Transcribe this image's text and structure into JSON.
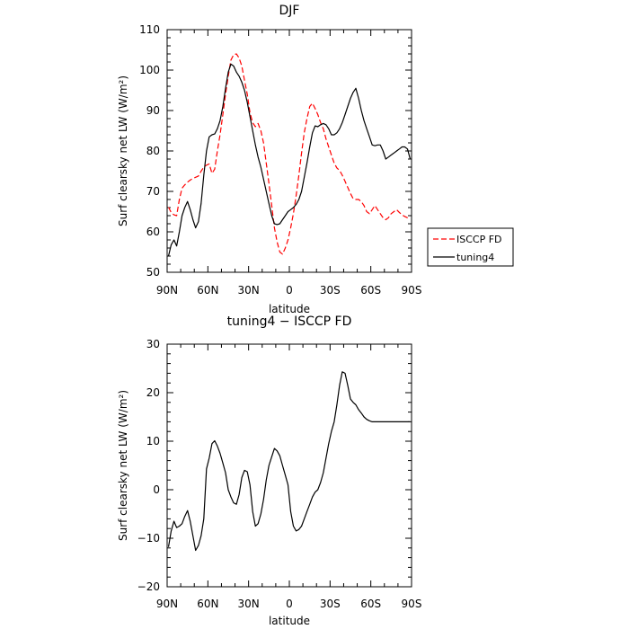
{
  "chart_data": [
    {
      "type": "line",
      "title": "DJF",
      "xlabel": "latitude",
      "ylabel": "Surf clearsky net LW (W/m²)",
      "xlim": [
        90,
        -90
      ],
      "ylim": [
        50,
        110
      ],
      "x_ticks": [
        90,
        60,
        30,
        0,
        -30,
        -60,
        -90
      ],
      "x_tick_labels": [
        "90N",
        "60N",
        "30N",
        "0",
        "30S",
        "60S",
        "90S"
      ],
      "y_ticks": [
        50,
        60,
        70,
        80,
        90,
        100,
        110
      ],
      "y_tick_labels": [
        "50",
        "60",
        "70",
        "80",
        "90",
        "100",
        "110"
      ],
      "legend_position": "outside-right",
      "series": [
        {
          "name": "ISCCP FD",
          "color": "#ff0000",
          "dash": "dashed",
          "x": [
            89,
            87,
            85,
            83,
            81,
            79,
            77,
            75,
            73,
            71,
            69,
            67,
            65,
            63,
            61,
            59,
            57,
            55,
            53,
            51,
            49,
            47,
            45,
            43,
            41,
            39,
            37,
            35,
            33,
            31,
            29,
            27,
            25,
            23,
            21,
            19,
            17,
            15,
            13,
            11,
            9,
            7,
            5,
            3,
            1,
            -1,
            -3,
            -5,
            -7,
            -9,
            -11,
            -13,
            -15,
            -17,
            -19,
            -21,
            -23,
            -25,
            -27,
            -29,
            -31,
            -33,
            -35,
            -37,
            -39,
            -41,
            -43,
            -45,
            -47,
            -49,
            -51,
            -53,
            -55,
            -57,
            -59,
            -61,
            -63,
            -65,
            -67,
            -69,
            -71,
            -73,
            -75,
            -77,
            -79,
            -81,
            -83,
            -85,
            -87,
            -89
          ],
          "values": [
            66.1,
            64.8,
            64.2,
            64.0,
            68.0,
            70.8,
            71.6,
            72.3,
            72.8,
            73.2,
            73.5,
            73.8,
            75.0,
            76.0,
            76.5,
            76.8,
            74.5,
            75.5,
            80.0,
            84.0,
            89.0,
            94.0,
            98.5,
            102.5,
            103.8,
            104.0,
            103.0,
            101.0,
            97.5,
            94.0,
            89.5,
            87.0,
            86.0,
            86.8,
            85.0,
            82.0,
            77.0,
            72.0,
            66.5,
            61.0,
            57.5,
            55.0,
            54.5,
            56.0,
            58.0,
            61.0,
            64.5,
            69.0,
            74.0,
            79.5,
            84.5,
            88.0,
            91.0,
            91.8,
            90.5,
            89.0,
            87.0,
            85.5,
            83.0,
            81.0,
            79.0,
            77.0,
            75.8,
            75.2,
            74.0,
            72.5,
            71.0,
            69.5,
            68.2,
            68.0,
            68.0,
            67.5,
            66.5,
            65.0,
            64.5,
            65.5,
            66.5,
            65.5,
            64.5,
            63.5,
            63.0,
            63.5,
            64.5,
            65.0,
            65.5,
            64.8,
            64.2,
            63.8,
            63.5,
            63.3
          ]
        },
        {
          "name": "tuning4",
          "color": "#000000",
          "dash": "solid",
          "x": [
            89,
            87,
            85,
            83,
            81,
            79,
            77,
            75,
            73,
            71,
            69,
            67,
            65,
            63,
            61,
            59,
            57,
            55,
            53,
            51,
            49,
            47,
            45,
            43,
            41,
            39,
            37,
            35,
            33,
            31,
            29,
            27,
            25,
            23,
            21,
            19,
            17,
            15,
            13,
            11,
            9,
            7,
            5,
            3,
            1,
            -1,
            -3,
            -5,
            -7,
            -9,
            -11,
            -13,
            -15,
            -17,
            -19,
            -21,
            -23,
            -25,
            -27,
            -29,
            -31,
            -33,
            -35,
            -37,
            -39,
            -41,
            -43,
            -45,
            -47,
            -49,
            -51,
            -53,
            -55,
            -57,
            -59,
            -61,
            -63,
            -65,
            -67,
            -69,
            -71,
            -73,
            -75,
            -77,
            -79,
            -81,
            -83,
            -85,
            -87,
            -89
          ],
          "values": [
            54.0,
            56.8,
            58.0,
            56.5,
            60.0,
            64.0,
            66.0,
            67.5,
            65.5,
            63.0,
            61.0,
            62.5,
            67.0,
            74.0,
            80.0,
            83.5,
            84.0,
            84.2,
            85.5,
            87.5,
            91.0,
            95.5,
            99.5,
            101.5,
            101.0,
            99.5,
            98.5,
            97.0,
            95.0,
            92.0,
            88.5,
            85.0,
            81.5,
            78.5,
            76.0,
            73.0,
            70.0,
            67.0,
            64.0,
            62.0,
            61.8,
            62.0,
            63.0,
            64.0,
            65.0,
            65.5,
            66.0,
            66.8,
            68.0,
            70.0,
            73.5,
            77.0,
            81.0,
            84.5,
            86.2,
            86.0,
            86.5,
            86.8,
            86.5,
            85.5,
            84.0,
            84.0,
            84.5,
            85.5,
            87.0,
            89.0,
            91.0,
            93.0,
            94.5,
            95.5,
            93.0,
            90.0,
            87.5,
            85.5,
            83.5,
            81.5,
            81.3,
            81.5,
            81.5,
            80.0,
            78.0,
            78.5,
            79.0,
            79.5,
            80.0,
            80.5,
            81.0,
            81.0,
            80.5,
            78.0
          ]
        }
      ]
    },
    {
      "type": "line",
      "title": "tuning4 − ISCCP FD",
      "xlabel": "latitude",
      "ylabel": "Surf clearsky net LW (W/m²)",
      "xlim": [
        90,
        -90
      ],
      "ylim": [
        -20,
        30
      ],
      "x_ticks": [
        90,
        60,
        30,
        0,
        -30,
        -60,
        -90
      ],
      "x_tick_labels": [
        "90N",
        "60N",
        "30N",
        "0",
        "30S",
        "60S",
        "90S"
      ],
      "y_ticks": [
        -20,
        -10,
        0,
        10,
        20,
        30
      ],
      "y_tick_labels": [
        "−20",
        "−10",
        "0",
        "10",
        "20",
        "30"
      ],
      "series": [
        {
          "color": "#000000",
          "dash": "solid",
          "x": [
            89,
            87,
            85,
            83,
            81,
            79,
            77,
            75,
            73,
            71,
            69,
            67,
            65,
            63,
            61,
            59,
            57,
            55,
            53,
            51,
            49,
            47,
            45,
            43,
            41,
            39,
            37,
            35,
            33,
            31,
            29,
            27,
            25,
            23,
            21,
            19,
            17,
            15,
            13,
            11,
            9,
            7,
            5,
            3,
            1,
            -1,
            -3,
            -5,
            -7,
            -9,
            -11,
            -13,
            -15,
            -17,
            -19,
            -21,
            -23,
            -25,
            -27,
            -29,
            -31,
            -33,
            -35,
            -37,
            -39,
            -41,
            -43,
            -45,
            -47,
            -49,
            -51,
            -53,
            -55,
            -57,
            -59,
            -61,
            -63,
            -65,
            -67,
            -69,
            -71,
            -73,
            -75,
            -77,
            -79,
            -81,
            -83,
            -85,
            -87,
            -89
          ],
          "values": [
            -11.8,
            -8.5,
            -6.5,
            -7.8,
            -7.5,
            -7.0,
            -5.5,
            -4.3,
            -6.5,
            -9.5,
            -12.5,
            -11.5,
            -9.5,
            -6.0,
            4.3,
            6.5,
            9.5,
            10.1,
            9.0,
            7.5,
            5.5,
            3.5,
            0.0,
            -1.5,
            -2.7,
            -3.0,
            -1.0,
            2.5,
            4.0,
            3.7,
            1.0,
            -4.5,
            -7.5,
            -7.0,
            -5.0,
            -2.0,
            2.0,
            5.0,
            6.8,
            8.5,
            8.0,
            7.0,
            5.0,
            3.0,
            1.0,
            -4.5,
            -7.5,
            -8.5,
            -8.2,
            -7.5,
            -6.0,
            -4.5,
            -3.0,
            -1.5,
            -0.5,
            0.0,
            1.5,
            3.5,
            6.5,
            9.5,
            12.0,
            14.0,
            17.5,
            21.5,
            24.3,
            24.0,
            21.5,
            18.7,
            18.0,
            17.5,
            16.5,
            15.8,
            15.0,
            14.5,
            14.2,
            14.0,
            14.0,
            14.0,
            14.0,
            14.0,
            14.0,
            14.0,
            14.0,
            14.0,
            14.0,
            14.0,
            14.0,
            14.0,
            14.0,
            14.0
          ]
        }
      ]
    }
  ]
}
